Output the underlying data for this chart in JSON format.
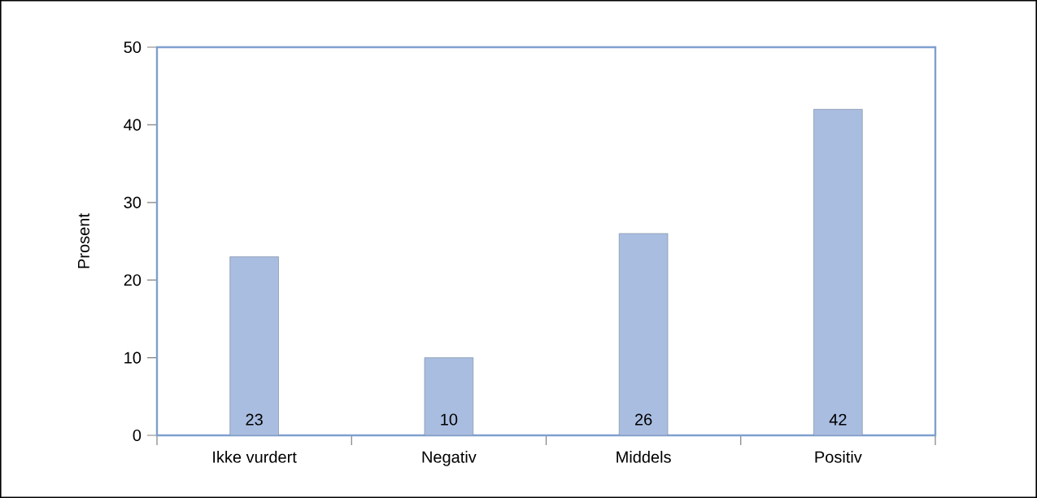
{
  "chart_data": {
    "type": "bar",
    "ylabel": "Prosent",
    "categories": [
      "Ikke vurdert",
      "Negativ",
      "Middels",
      "Positiv"
    ],
    "values": [
      23,
      10,
      26,
      42
    ],
    "color": "#a9bde0",
    "ylim": [
      0,
      50
    ],
    "yticks": [
      0,
      10,
      20,
      30,
      40,
      50
    ],
    "data_labels": true
  }
}
